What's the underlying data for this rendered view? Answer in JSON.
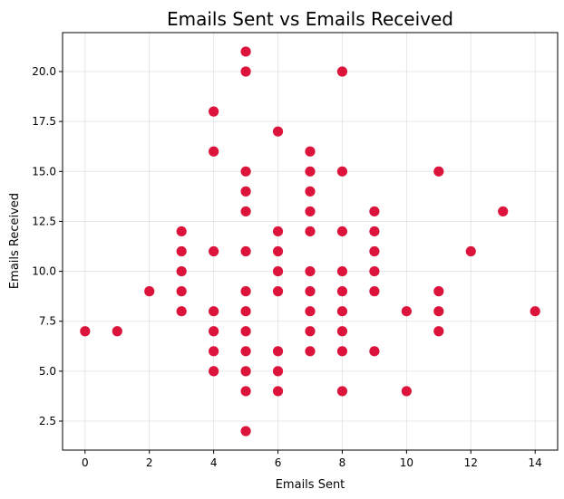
{
  "chart_data": {
    "type": "scatter",
    "title": "Emails Sent vs Emails Received",
    "xlabel": "Emails Sent",
    "ylabel": "Emails Received",
    "xlim": [
      -0.7,
      14.7
    ],
    "ylim": [
      1.05,
      21.95
    ],
    "xticks": [
      0,
      2,
      4,
      6,
      8,
      10,
      12,
      14
    ],
    "xtick_labels": [
      "0",
      "2",
      "4",
      "6",
      "8",
      "10",
      "12",
      "14"
    ],
    "yticks": [
      2.5,
      5.0,
      7.5,
      10.0,
      12.5,
      15.0,
      17.5,
      20.0
    ],
    "ytick_labels": [
      "2.5",
      "5.0",
      "7.5",
      "10.0",
      "12.5",
      "15.0",
      "17.5",
      "20.0"
    ],
    "grid": true,
    "marker_color": "#dc143c",
    "points": [
      [
        0,
        7
      ],
      [
        1,
        7
      ],
      [
        2,
        9
      ],
      [
        3,
        8
      ],
      [
        3,
        9
      ],
      [
        3,
        10
      ],
      [
        3,
        11
      ],
      [
        3,
        12
      ],
      [
        4,
        5
      ],
      [
        4,
        6
      ],
      [
        4,
        7
      ],
      [
        4,
        8
      ],
      [
        4,
        11
      ],
      [
        4,
        16
      ],
      [
        4,
        18
      ],
      [
        5,
        2
      ],
      [
        5,
        4
      ],
      [
        5,
        5
      ],
      [
        5,
        6
      ],
      [
        5,
        7
      ],
      [
        5,
        8
      ],
      [
        5,
        9
      ],
      [
        5,
        11
      ],
      [
        5,
        13
      ],
      [
        5,
        14
      ],
      [
        5,
        15
      ],
      [
        5,
        20
      ],
      [
        5,
        21
      ],
      [
        6,
        4
      ],
      [
        6,
        5
      ],
      [
        6,
        6
      ],
      [
        6,
        9
      ],
      [
        6,
        10
      ],
      [
        6,
        11
      ],
      [
        6,
        12
      ],
      [
        6,
        17
      ],
      [
        7,
        6
      ],
      [
        7,
        7
      ],
      [
        7,
        8
      ],
      [
        7,
        9
      ],
      [
        7,
        10
      ],
      [
        7,
        12
      ],
      [
        7,
        13
      ],
      [
        7,
        14
      ],
      [
        7,
        15
      ],
      [
        7,
        16
      ],
      [
        8,
        4
      ],
      [
        8,
        6
      ],
      [
        8,
        7
      ],
      [
        8,
        8
      ],
      [
        8,
        9
      ],
      [
        8,
        10
      ],
      [
        8,
        12
      ],
      [
        8,
        15
      ],
      [
        8,
        20
      ],
      [
        9,
        6
      ],
      [
        9,
        9
      ],
      [
        9,
        10
      ],
      [
        9,
        11
      ],
      [
        9,
        12
      ],
      [
        9,
        13
      ],
      [
        10,
        4
      ],
      [
        10,
        8
      ],
      [
        11,
        7
      ],
      [
        11,
        8
      ],
      [
        11,
        9
      ],
      [
        11,
        15
      ],
      [
        12,
        11
      ],
      [
        13,
        13
      ],
      [
        14,
        8
      ]
    ]
  }
}
